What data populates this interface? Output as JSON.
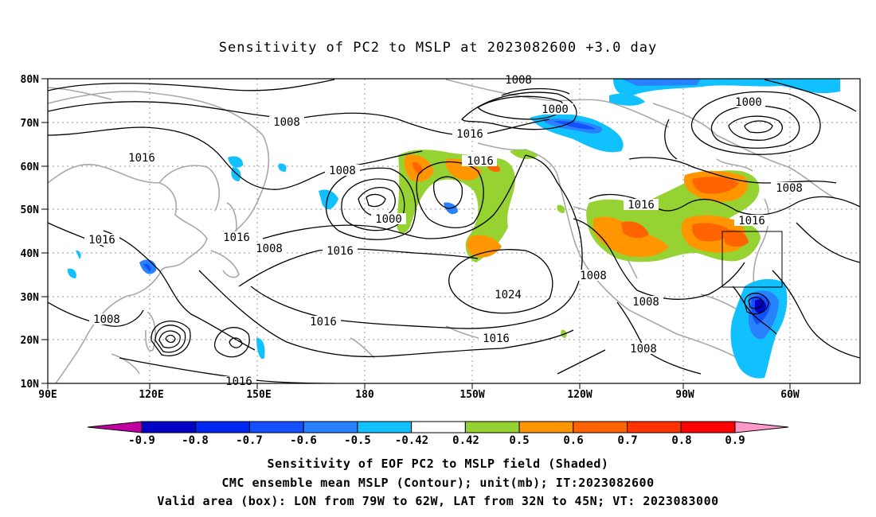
{
  "title": "Sensitivity of PC2 to MSLP at 2023082600 +3.0 day",
  "lat_labels": [
    "80N",
    "70N",
    "60N",
    "50N",
    "40N",
    "30N",
    "20N",
    "10N"
  ],
  "lon_labels": [
    "90E",
    "120E",
    "150E",
    "180",
    "150W",
    "120W",
    "90W",
    "60W"
  ],
  "contour_labels": [
    "1008",
    "1000",
    "1000",
    "1008",
    "1016",
    "1016",
    "1016",
    "1008",
    "1000",
    "1016",
    "1008",
    "1016",
    "1016",
    "1008",
    "1016",
    "1016",
    "1024",
    "1016",
    "1016",
    "1008",
    "1008",
    "1008",
    "1008",
    "1016",
    "1008"
  ],
  "colorbar": {
    "ticks": [
      "-0.9",
      "-0.8",
      "-0.7",
      "-0.6",
      "-0.5",
      "-0.42",
      "0.42",
      "0.5",
      "0.6",
      "0.7",
      "0.8",
      "0.9"
    ],
    "colors": [
      "#c000a0",
      "#0000c8",
      "#0028f0",
      "#1450ff",
      "#2882ff",
      "#10c0ff",
      "#ffffff",
      "#96d232",
      "#ff9600",
      "#ff6400",
      "#ff3200",
      "#ff0000",
      "#ff9ac8"
    ]
  },
  "valid_box": {
    "lon_from": "79W",
    "lon_to": "62W",
    "lat_from": "32N",
    "lat_to": "45N"
  },
  "captions": [
    "Sensitivity of EOF PC2 to MSLP field (Shaded)",
    "CMC ensemble mean MSLP (Contour); unit(mb); IT:2023082600",
    "Valid area (box): LON from 79W to 62W, LAT from 32N to 45N; VT: 2023083000"
  ]
}
